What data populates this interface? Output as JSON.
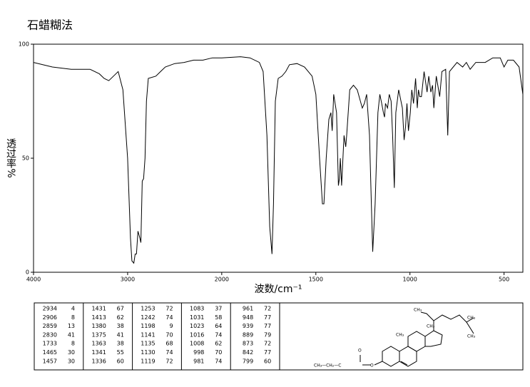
{
  "chart_data": {
    "type": "line",
    "title": "石蜡糊法",
    "xlabel": "波数/cm⁻¹",
    "ylabel": "透过率%",
    "xlim": [
      4000,
      400
    ],
    "ylim": [
      0,
      100
    ],
    "x_scale": {
      "break": 2000,
      "factor": 2
    },
    "xticks": [
      4000,
      3000,
      2000,
      1500,
      1000,
      500
    ],
    "yticks": [
      0,
      50,
      100
    ],
    "color": "#000000",
    "x": [
      4000,
      3800,
      3600,
      3400,
      3300,
      3250,
      3200,
      3150,
      3100,
      3050,
      3000,
      2970,
      2955,
      2934,
      2920,
      2906,
      2890,
      2870,
      2859,
      2845,
      2830,
      2815,
      2800,
      2780,
      2700,
      2650,
      2600,
      2500,
      2400,
      2300,
      2200,
      2100,
      2000,
      1900,
      1850,
      1800,
      1780,
      1760,
      1745,
      1733,
      1725,
      1715,
      1700,
      1680,
      1660,
      1640,
      1600,
      1560,
      1520,
      1500,
      1480,
      1465,
      1457,
      1445,
      1431,
      1420,
      1413,
      1405,
      1390,
      1380,
      1375,
      1370,
      1363,
      1350,
      1341,
      1336,
      1320,
      1300,
      1280,
      1253,
      1242,
      1230,
      1215,
      1205,
      1198,
      1185,
      1170,
      1160,
      1150,
      1141,
      1135,
      1130,
      1119,
      1110,
      1100,
      1092,
      1083,
      1075,
      1060,
      1050,
      1040,
      1031,
      1023,
      1016,
      1008,
      998,
      990,
      981,
      970,
      961,
      955,
      948,
      939,
      925,
      909,
      900,
      889,
      880,
      873,
      860,
      842,
      830,
      810,
      799,
      790,
      770,
      750,
      720,
      700,
      680,
      650,
      600,
      560,
      520,
      500,
      480,
      450,
      420,
      400
    ],
    "values": [
      92,
      90,
      89,
      89,
      87,
      85,
      84,
      86,
      88,
      80,
      50,
      15,
      5,
      4,
      8,
      8,
      18,
      15,
      13,
      40,
      41,
      50,
      75,
      85,
      86,
      88,
      90,
      91.5,
      92,
      93,
      93,
      94,
      94,
      94.5,
      94,
      92,
      88,
      60,
      20,
      8,
      30,
      75,
      85,
      86,
      88,
      91,
      91.5,
      90,
      86,
      78,
      50,
      30,
      30,
      50,
      67,
      70,
      62,
      78,
      70,
      38,
      41,
      50,
      38,
      60,
      55,
      60,
      80,
      82,
      80,
      72,
      74,
      78,
      60,
      30,
      9,
      30,
      70,
      78,
      74,
      70,
      68,
      74,
      72,
      78,
      75,
      60,
      37,
      70,
      80,
      76,
      72,
      58,
      64,
      74,
      62,
      70,
      80,
      74,
      85,
      72,
      80,
      77,
      77,
      88,
      79,
      86,
      79,
      82,
      72,
      86,
      77,
      88,
      89,
      60,
      88,
      90,
      92,
      90,
      92,
      89,
      92,
      92,
      94,
      94,
      90,
      93,
      93,
      90,
      78
    ]
  },
  "peak_table": [
    [
      [
        2934,
        4
      ],
      [
        2906,
        8
      ],
      [
        2859,
        13
      ],
      [
        2830,
        41
      ],
      [
        1733,
        8
      ],
      [
        1465,
        30
      ],
      [
        1457,
        30
      ]
    ],
    [
      [
        1431,
        67
      ],
      [
        1413,
        62
      ],
      [
        1380,
        38
      ],
      [
        1375,
        41
      ],
      [
        1363,
        38
      ],
      [
        1341,
        55
      ],
      [
        1336,
        60
      ]
    ],
    [
      [
        1253,
        72
      ],
      [
        1242,
        74
      ],
      [
        1198,
        9
      ],
      [
        1141,
        70
      ],
      [
        1135,
        68
      ],
      [
        1130,
        74
      ],
      [
        1119,
        72
      ]
    ],
    [
      [
        1083,
        37
      ],
      [
        1031,
        58
      ],
      [
        1023,
        64
      ],
      [
        1016,
        74
      ],
      [
        1008,
        62
      ],
      [
        998,
        70
      ],
      [
        981,
        74
      ]
    ],
    [
      [
        961,
        72
      ],
      [
        948,
        77
      ],
      [
        939,
        77
      ],
      [
        889,
        79
      ],
      [
        873,
        72
      ],
      [
        842,
        77
      ],
      [
        799,
        60
      ]
    ]
  ],
  "structure": {
    "labels": [
      "CH₃",
      "CH₃",
      "CH₃",
      "CH₃",
      "CH₃",
      "O",
      "CH₃—CH₂—C",
      "O"
    ]
  }
}
